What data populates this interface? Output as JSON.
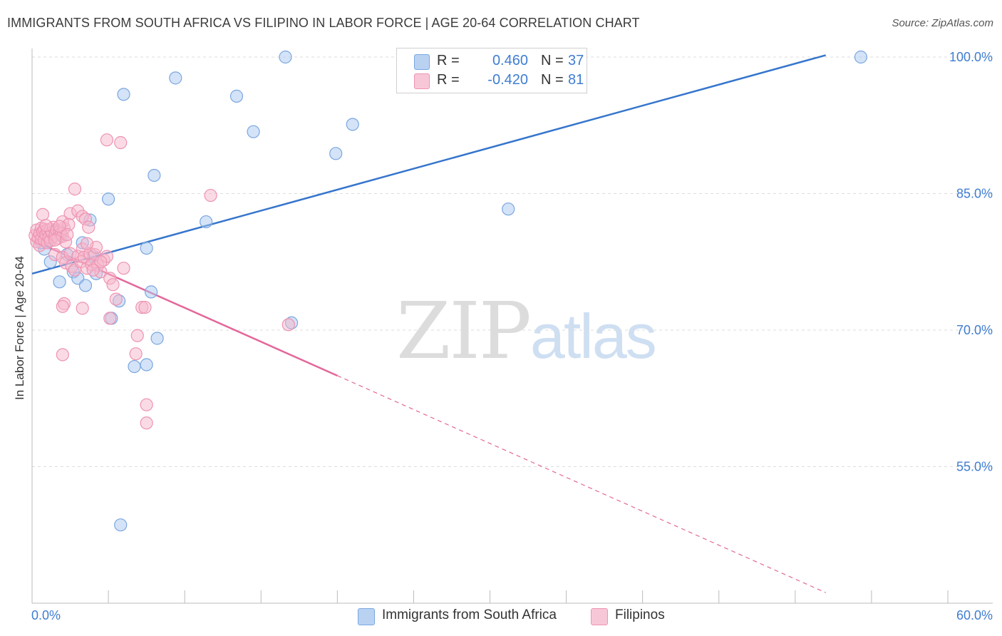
{
  "header": {
    "title": "IMMIGRANTS FROM SOUTH AFRICA VS FILIPINO IN LABOR FORCE | AGE 20-64 CORRELATION CHART",
    "source": "Source: ZipAtlas.com"
  },
  "watermark": {
    "zip": "ZIP",
    "atlas": "atlas"
  },
  "legend_top": [
    {
      "r_label": "R =",
      "r_value": "0.460",
      "n_label": "N =",
      "n_value": "37"
    },
    {
      "r_label": "R =",
      "r_value": "-0.420",
      "n_label": "N =",
      "n_value": "81"
    }
  ],
  "colors": {
    "blue_fill": "#a9c8f0",
    "blue_stroke": "#7aa7e0",
    "blue_line": "#3575cc",
    "pink_fill": "#f6b8cc",
    "pink_stroke": "#ee93b1",
    "pink_line": "#e4679a",
    "grid": "#dddddd",
    "tick_label": "#3f7dd1"
  },
  "chart_data": {
    "type": "scatter",
    "title": "IMMIGRANTS FROM SOUTH AFRICA VS FILIPINO IN LABOR FORCE | AGE 20-64 CORRELATION CHART",
    "xlabel": "",
    "ylabel": "In Labor Force | Age 20-64",
    "xlim": [
      0,
      60
    ],
    "ylim": [
      40,
      101.5
    ],
    "x_tick_labels": [
      "0.0%",
      "60.0%"
    ],
    "y_ticks": [
      55,
      70,
      85,
      100
    ],
    "y_tick_labels": [
      "55.0%",
      "70.0%",
      "85.0%",
      "100.0%"
    ],
    "legend_position": "bottom-center",
    "series": [
      {
        "name": "Immigrants from South Africa",
        "color": "blue",
        "r": 0.46,
        "n": 37,
        "trend": {
          "x0": 0,
          "y0": 76.2,
          "x1": 52.0,
          "y1": 100.2,
          "dashed_to_x": null
        },
        "points": [
          [
            0.8,
            78.9
          ],
          [
            0.6,
            79.6
          ],
          [
            1.0,
            79.8
          ],
          [
            1.2,
            77.5
          ],
          [
            1.9,
            80.4
          ],
          [
            2.3,
            78.3
          ],
          [
            1.8,
            75.3
          ],
          [
            2.7,
            76.4
          ],
          [
            3.0,
            75.7
          ],
          [
            3.3,
            79.6
          ],
          [
            3.5,
            74.9
          ],
          [
            3.8,
            82.1
          ],
          [
            4.0,
            78.1
          ],
          [
            4.2,
            76.2
          ],
          [
            5.2,
            71.3
          ],
          [
            5.7,
            73.2
          ],
          [
            5.0,
            84.4
          ],
          [
            6.0,
            95.9
          ],
          [
            6.7,
            66.0
          ],
          [
            7.5,
            66.2
          ],
          [
            7.5,
            79.0
          ],
          [
            7.8,
            74.2
          ],
          [
            8.2,
            69.1
          ],
          [
            8.0,
            87.0
          ],
          [
            9.4,
            97.7
          ],
          [
            11.4,
            81.9
          ],
          [
            13.4,
            95.7
          ],
          [
            14.5,
            91.8
          ],
          [
            16.6,
            100.0
          ],
          [
            17.0,
            70.8
          ],
          [
            19.9,
            89.4
          ],
          [
            21.0,
            92.6
          ],
          [
            31.2,
            83.3
          ],
          [
            54.3,
            100.0
          ],
          [
            5.8,
            48.6
          ],
          [
            0.7,
            80.3
          ],
          [
            1.4,
            80.8
          ]
        ]
      },
      {
        "name": "Filipinos",
        "color": "pink",
        "r": -0.42,
        "n": 81,
        "trend": {
          "x0": 0,
          "y0": 79.9,
          "x1": 20.0,
          "y1": 65.0,
          "dashed_to_x": 52.0
        },
        "points": [
          [
            0.2,
            80.4
          ],
          [
            0.3,
            79.7
          ],
          [
            0.3,
            81.0
          ],
          [
            0.4,
            80.1
          ],
          [
            0.5,
            80.6
          ],
          [
            0.5,
            79.3
          ],
          [
            0.6,
            81.2
          ],
          [
            0.6,
            80.0
          ],
          [
            0.7,
            80.8
          ],
          [
            0.7,
            82.7
          ],
          [
            0.8,
            79.9
          ],
          [
            0.8,
            81.1
          ],
          [
            0.9,
            80.5
          ],
          [
            1.0,
            79.6
          ],
          [
            1.0,
            81.0
          ],
          [
            1.1,
            80.2
          ],
          [
            1.2,
            81.1
          ],
          [
            1.2,
            79.8
          ],
          [
            1.3,
            80.7
          ],
          [
            1.4,
            81.3
          ],
          [
            1.5,
            80.4
          ],
          [
            1.6,
            81.0
          ],
          [
            1.7,
            80.1
          ],
          [
            1.8,
            80.9
          ],
          [
            1.9,
            80.6
          ],
          [
            2.0,
            80.3
          ],
          [
            2.1,
            81.2
          ],
          [
            2.2,
            79.7
          ],
          [
            1.5,
            78.3
          ],
          [
            2.0,
            78.0
          ],
          [
            2.2,
            77.4
          ],
          [
            2.5,
            78.4
          ],
          [
            2.6,
            77.0
          ],
          [
            2.8,
            76.6
          ],
          [
            3.0,
            78.1
          ],
          [
            3.2,
            77.5
          ],
          [
            3.3,
            78.9
          ],
          [
            3.4,
            78.0
          ],
          [
            3.6,
            76.8
          ],
          [
            3.8,
            78.4
          ],
          [
            3.9,
            77.2
          ],
          [
            4.1,
            78.3
          ],
          [
            4.2,
            79.1
          ],
          [
            4.3,
            77.1
          ],
          [
            4.5,
            76.4
          ],
          [
            4.7,
            77.7
          ],
          [
            4.9,
            78.1
          ],
          [
            5.1,
            75.7
          ],
          [
            5.3,
            75.0
          ],
          [
            5.5,
            73.4
          ],
          [
            2.5,
            82.8
          ],
          [
            3.0,
            83.1
          ],
          [
            3.3,
            82.5
          ],
          [
            3.5,
            82.2
          ],
          [
            3.7,
            81.3
          ],
          [
            2.0,
            81.9
          ],
          [
            2.4,
            81.6
          ],
          [
            2.8,
            85.5
          ],
          [
            4.9,
            90.9
          ],
          [
            5.8,
            90.6
          ],
          [
            11.7,
            84.8
          ],
          [
            6.0,
            76.8
          ],
          [
            6.8,
            67.4
          ],
          [
            6.9,
            69.4
          ],
          [
            7.2,
            72.5
          ],
          [
            7.4,
            72.5
          ],
          [
            7.5,
            61.8
          ],
          [
            7.5,
            59.8
          ],
          [
            2.1,
            72.9
          ],
          [
            2.0,
            72.6
          ],
          [
            3.3,
            72.4
          ],
          [
            5.1,
            71.3
          ],
          [
            2.0,
            67.3
          ],
          [
            16.8,
            70.6
          ],
          [
            4.5,
            77.5
          ],
          [
            1.5,
            79.9
          ],
          [
            0.9,
            81.5
          ],
          [
            1.8,
            81.4
          ],
          [
            2.3,
            80.5
          ],
          [
            3.6,
            79.5
          ],
          [
            4.0,
            76.6
          ]
        ]
      }
    ]
  },
  "legend_bottom": [
    {
      "label": "Immigrants from South Africa"
    },
    {
      "label": "Filipinos"
    }
  ]
}
